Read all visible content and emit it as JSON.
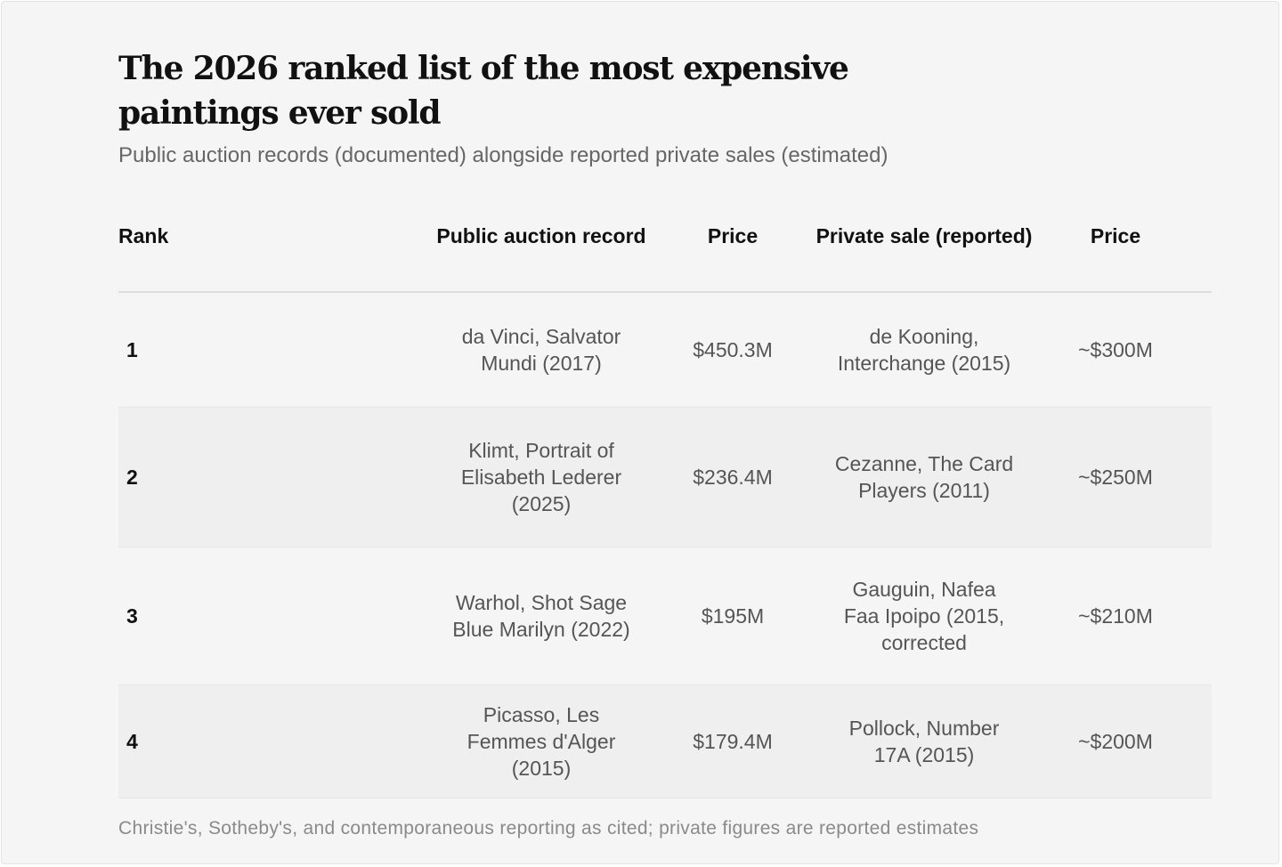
{
  "title": "The 2026 ranked list of the most expensive paintings ever sold",
  "subtitle": "Public auction records (documented) alongside reported private sales (estimated)",
  "footnote": "Christie's, Sotheby's, and contemporaneous reporting as cited; private figures are reported estimates",
  "chart_data": {
    "type": "table",
    "title": "The 2026 ranked list of the most expensive paintings ever sold",
    "subtitle": "Public auction records (documented) alongside reported private sales (estimated)",
    "columns": [
      "Rank",
      "Public auction record",
      "Price",
      "Private sale (reported)",
      "Price"
    ],
    "rows": [
      {
        "rank": "1",
        "auction": "da Vinci, Salvator Mundi (2017)",
        "auction_price": "$450.3M",
        "private": "de Kooning, Interchange (2015)",
        "private_price": "~$300M"
      },
      {
        "rank": "2",
        "auction": "Klimt, Portrait of Elisabeth Lederer (2025)",
        "auction_price": "$236.4M",
        "private": "Cezanne, The Card Players (2011)",
        "private_price": "~$250M"
      },
      {
        "rank": "3",
        "auction": "Warhol, Shot Sage Blue Marilyn (2022)",
        "auction_price": "$195M",
        "private": "Gauguin, Nafea Faa Ipoipo (2015, corrected",
        "private_price": "~$210M"
      },
      {
        "rank": "4",
        "auction": "Picasso, Les Femmes d'Alger (2015)",
        "auction_price": "$179.4M",
        "private": "Pollock, Number 17A (2015)",
        "private_price": "~$200M"
      }
    ],
    "auction_prices_musd": [
      450.3,
      236.4,
      195,
      179.4
    ],
    "private_prices_musd_approx": [
      300,
      250,
      210,
      200
    ],
    "source": "Christie's, Sotheby's, and contemporaneous reporting as cited; private figures are reported estimates"
  }
}
